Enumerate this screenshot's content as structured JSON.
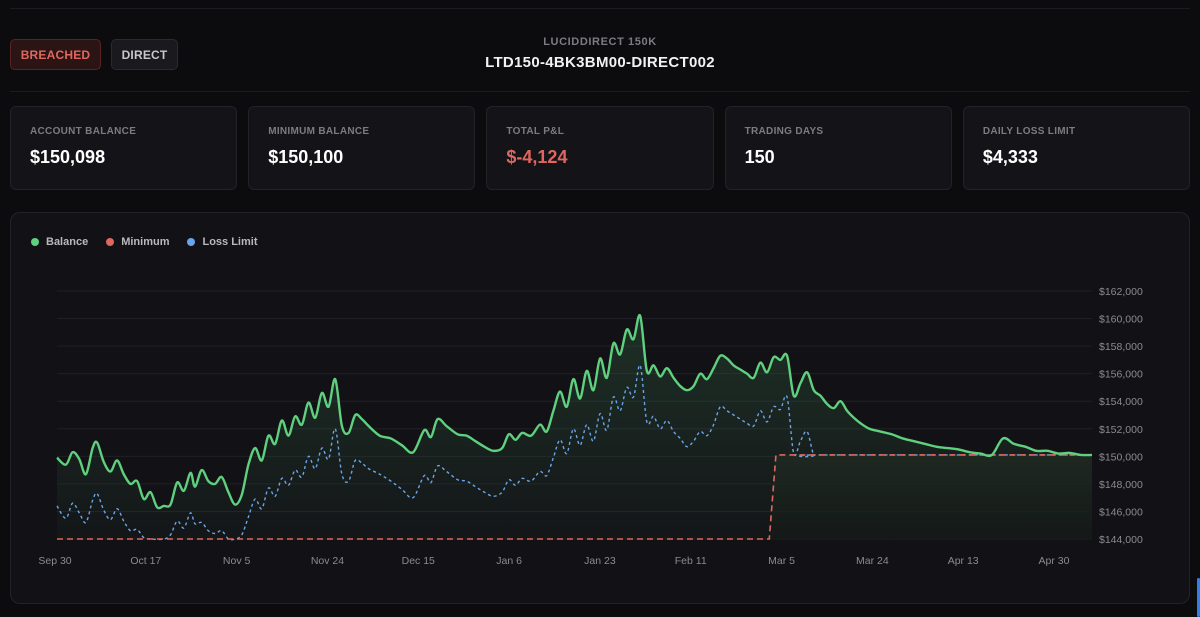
{
  "header": {
    "status_badge": "BREACHED",
    "type_badge": "DIRECT",
    "account_label": "LUCIDDIRECT 150K",
    "account_id": "LTD150-4BK3BM00-DIRECT002"
  },
  "stats": [
    {
      "label": "ACCOUNT BALANCE",
      "value": "$150,098",
      "tone": "normal"
    },
    {
      "label": "MINIMUM BALANCE",
      "value": "$150,100",
      "tone": "normal"
    },
    {
      "label": "TOTAL P&L",
      "value": "$-4,124",
      "tone": "negative"
    },
    {
      "label": "TRADING DAYS",
      "value": "150",
      "tone": "normal"
    },
    {
      "label": "DAILY LOSS LIMIT",
      "value": "$4,333",
      "tone": "normal"
    }
  ],
  "colors": {
    "balance": "#5fd07e",
    "minimum": "#e0675f",
    "loss_limit": "#6aa4e8",
    "negative": "#e0675f"
  },
  "chart_data": {
    "type": "line",
    "legend": [
      "Balance",
      "Minimum",
      "Loss Limit"
    ],
    "legend_position": "top-left",
    "x_tick_labels": [
      "Sep 30",
      "Oct 17",
      "Nov 5",
      "Nov 24",
      "Dec 15",
      "Jan 6",
      "Jan 23",
      "Feb 11",
      "Mar 5",
      "Mar 24",
      "Apr 13",
      "Apr 30"
    ],
    "y_tick_labels": [
      "$162,000",
      "$160,000",
      "$158,000",
      "$156,000",
      "$154,000",
      "$152,000",
      "$150,000",
      "$148,000",
      "$146,000",
      "$144,000"
    ],
    "ylim": [
      144000,
      162000
    ],
    "grid": true,
    "y_axis_side": "right",
    "x_index_range": [
      0,
      223
    ],
    "series": [
      {
        "name": "Balance",
        "style": "solid",
        "points": [
          [
            0,
            149900
          ],
          [
            4,
            149400
          ],
          [
            7,
            150300
          ],
          [
            10,
            149800
          ],
          [
            13,
            148700
          ],
          [
            16,
            150600
          ],
          [
            18,
            151000
          ],
          [
            21,
            149600
          ],
          [
            24,
            148900
          ],
          [
            27,
            149700
          ],
          [
            30,
            148700
          ],
          [
            33,
            148000
          ],
          [
            36,
            148200
          ],
          [
            39,
            146900
          ],
          [
            42,
            147400
          ],
          [
            45,
            146300
          ],
          [
            48,
            146400
          ],
          [
            51,
            146500
          ],
          [
            54,
            148100
          ],
          [
            57,
            147500
          ],
          [
            60,
            148800
          ],
          [
            62,
            147800
          ],
          [
            65,
            149000
          ],
          [
            68,
            148200
          ],
          [
            71,
            148000
          ],
          [
            74,
            148500
          ],
          [
            77,
            147400
          ],
          [
            80,
            146500
          ],
          [
            83,
            147200
          ],
          [
            86,
            149400
          ],
          [
            89,
            150600
          ],
          [
            92,
            149700
          ],
          [
            95,
            151500
          ],
          [
            98,
            150900
          ],
          [
            101,
            152600
          ],
          [
            104,
            151500
          ],
          [
            107,
            152900
          ],
          [
            110,
            152300
          ],
          [
            113,
            153900
          ],
          [
            116,
            152800
          ],
          [
            119,
            154600
          ],
          [
            122,
            153600
          ],
          [
            125,
            155600
          ],
          [
            128,
            152200
          ],
          [
            131,
            151700
          ],
          [
            134,
            153000
          ],
          [
            137,
            152700
          ],
          [
            140,
            152200
          ],
          [
            145,
            151500
          ],
          [
            150,
            151300
          ],
          [
            155,
            150800
          ],
          [
            160,
            150300
          ],
          [
            165,
            151900
          ],
          [
            168,
            151400
          ],
          [
            171,
            152700
          ],
          [
            175,
            152200
          ],
          [
            180,
            151600
          ],
          [
            184,
            151500
          ],
          [
            188,
            151100
          ],
          [
            192,
            150700
          ],
          [
            196,
            150400
          ],
          [
            200,
            150600
          ],
          [
            203,
            151600
          ],
          [
            206,
            151200
          ],
          [
            209,
            151700
          ],
          [
            213,
            151500
          ],
          [
            217,
            152300
          ],
          [
            220,
            151800
          ],
          [
            223,
            153300
          ],
          [
            226,
            154700
          ],
          [
            229,
            153600
          ],
          [
            232,
            155600
          ],
          [
            235,
            154200
          ],
          [
            238,
            156200
          ],
          [
            241,
            154800
          ],
          [
            244,
            157100
          ],
          [
            247,
            155700
          ],
          [
            250,
            158200
          ],
          [
            253,
            157400
          ],
          [
            256,
            159200
          ],
          [
            259,
            158500
          ],
          [
            262,
            160200
          ],
          [
            265,
            156200
          ],
          [
            268,
            156600
          ],
          [
            271,
            155800
          ],
          [
            274,
            156400
          ],
          [
            277,
            155700
          ],
          [
            280,
            155100
          ],
          [
            283,
            154800
          ],
          [
            286,
            155100
          ],
          [
            289,
            156000
          ],
          [
            292,
            155600
          ],
          [
            295,
            156400
          ],
          [
            298,
            157300
          ],
          [
            301,
            157100
          ],
          [
            304,
            156600
          ],
          [
            307,
            156300
          ],
          [
            310,
            156000
          ],
          [
            313,
            155700
          ],
          [
            316,
            156800
          ],
          [
            319,
            156100
          ],
          [
            322,
            157200
          ],
          [
            325,
            157000
          ],
          [
            328,
            157300
          ],
          [
            331,
            154400
          ],
          [
            334,
            155300
          ],
          [
            337,
            156100
          ],
          [
            340,
            154800
          ],
          [
            343,
            154400
          ],
          [
            346,
            153800
          ],
          [
            349,
            153500
          ],
          [
            352,
            154000
          ],
          [
            355,
            153300
          ],
          [
            358,
            152800
          ],
          [
            361,
            152400
          ],
          [
            365,
            152000
          ],
          [
            370,
            151800
          ],
          [
            375,
            151600
          ],
          [
            380,
            151300
          ],
          [
            385,
            151100
          ],
          [
            390,
            150900
          ],
          [
            395,
            150700
          ],
          [
            400,
            150600
          ],
          [
            405,
            150500
          ],
          [
            410,
            150300
          ],
          [
            415,
            150200
          ],
          [
            420,
            150100
          ],
          [
            425,
            151300
          ],
          [
            430,
            150900
          ],
          [
            435,
            150700
          ],
          [
            440,
            150400
          ],
          [
            445,
            150400
          ],
          [
            450,
            150200
          ],
          [
            455,
            150250
          ],
          [
            460,
            150100
          ],
          [
            465,
            150098
          ]
        ]
      },
      {
        "name": "Minimum",
        "style": "dashed",
        "points": [
          [
            0,
            144000
          ],
          [
            320,
            144000
          ],
          [
            323,
            150100
          ],
          [
            465,
            150100
          ]
        ]
      },
      {
        "name": "Loss Limit",
        "style": "dotted",
        "points": [
          [
            0,
            146400
          ],
          [
            4,
            145500
          ],
          [
            7,
            146600
          ],
          [
            10,
            145900
          ],
          [
            13,
            145200
          ],
          [
            16,
            146800
          ],
          [
            18,
            147300
          ],
          [
            21,
            146100
          ],
          [
            24,
            145400
          ],
          [
            27,
            146200
          ],
          [
            30,
            145300
          ],
          [
            33,
            144600
          ],
          [
            36,
            144700
          ],
          [
            39,
            144100
          ],
          [
            42,
            144000
          ],
          [
            48,
            144000
          ],
          [
            51,
            144300
          ],
          [
            54,
            145300
          ],
          [
            57,
            144800
          ],
          [
            60,
            145900
          ],
          [
            62,
            145100
          ],
          [
            65,
            145200
          ],
          [
            68,
            144600
          ],
          [
            71,
            144400
          ],
          [
            74,
            144600
          ],
          [
            77,
            144000
          ],
          [
            80,
            144000
          ],
          [
            83,
            144300
          ],
          [
            86,
            145600
          ],
          [
            89,
            146900
          ],
          [
            92,
            146200
          ],
          [
            95,
            147700
          ],
          [
            98,
            147100
          ],
          [
            101,
            148400
          ],
          [
            104,
            147900
          ],
          [
            107,
            149000
          ],
          [
            110,
            148500
          ],
          [
            113,
            150000
          ],
          [
            116,
            149100
          ],
          [
            119,
            150600
          ],
          [
            122,
            149800
          ],
          [
            125,
            152000
          ],
          [
            128,
            148700
          ],
          [
            131,
            148200
          ],
          [
            134,
            149700
          ],
          [
            137,
            149500
          ],
          [
            140,
            149100
          ],
          [
            145,
            148700
          ],
          [
            150,
            148200
          ],
          [
            155,
            147600
          ],
          [
            160,
            147000
          ],
          [
            165,
            148600
          ],
          [
            168,
            148100
          ],
          [
            171,
            149300
          ],
          [
            175,
            148900
          ],
          [
            180,
            148300
          ],
          [
            184,
            148200
          ],
          [
            188,
            147800
          ],
          [
            192,
            147400
          ],
          [
            196,
            147100
          ],
          [
            200,
            147400
          ],
          [
            203,
            148300
          ],
          [
            206,
            147900
          ],
          [
            209,
            148400
          ],
          [
            213,
            148200
          ],
          [
            217,
            148900
          ],
          [
            220,
            148600
          ],
          [
            223,
            149900
          ],
          [
            226,
            151200
          ],
          [
            229,
            150200
          ],
          [
            232,
            152000
          ],
          [
            235,
            150800
          ],
          [
            238,
            152300
          ],
          [
            241,
            151100
          ],
          [
            244,
            153100
          ],
          [
            247,
            151900
          ],
          [
            250,
            154300
          ],
          [
            253,
            153300
          ],
          [
            256,
            155000
          ],
          [
            259,
            154300
          ],
          [
            262,
            156600
          ],
          [
            265,
            152500
          ],
          [
            268,
            152900
          ],
          [
            271,
            152000
          ],
          [
            274,
            152600
          ],
          [
            277,
            151800
          ],
          [
            280,
            151300
          ],
          [
            283,
            150700
          ],
          [
            286,
            151100
          ],
          [
            289,
            151800
          ],
          [
            292,
            151500
          ],
          [
            295,
            152300
          ],
          [
            298,
            153600
          ],
          [
            301,
            153300
          ],
          [
            304,
            153000
          ],
          [
            307,
            152700
          ],
          [
            310,
            152400
          ],
          [
            313,
            152200
          ],
          [
            316,
            153300
          ],
          [
            319,
            152500
          ],
          [
            322,
            153600
          ],
          [
            325,
            153400
          ],
          [
            328,
            154300
          ],
          [
            331,
            150200
          ],
          [
            334,
            151100
          ],
          [
            337,
            151800
          ],
          [
            340,
            150100
          ],
          [
            343,
            150100
          ],
          [
            465,
            150100
          ]
        ]
      }
    ]
  }
}
